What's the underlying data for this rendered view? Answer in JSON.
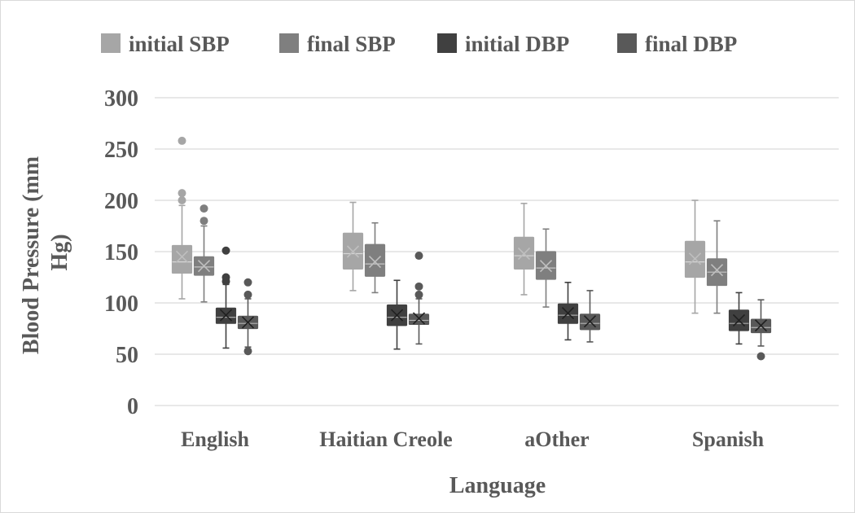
{
  "chart_data": {
    "type": "boxplot",
    "xlabel": "Language",
    "ylabel_lines": [
      "Blood Pressure (mm",
      "Hg)"
    ],
    "ylim": [
      0,
      300
    ],
    "yticks": [
      0,
      50,
      100,
      150,
      200,
      250,
      300
    ],
    "grid": true,
    "legend_position": "top",
    "categories": [
      "English",
      "Haitian Creole",
      "aOther",
      "Spanish"
    ],
    "series": [
      {
        "name": "initial SBP",
        "color": "#a6a6a6",
        "boxes": [
          {
            "min": 104,
            "q1": 129,
            "median": 140,
            "mean": 145,
            "q3": 156,
            "max": 195,
            "outliers": [
              200,
              207,
              258
            ]
          },
          {
            "min": 112,
            "q1": 133,
            "median": 148,
            "mean": 150,
            "q3": 168,
            "max": 198,
            "outliers": []
          },
          {
            "min": 108,
            "q1": 133,
            "median": 146,
            "mean": 148,
            "q3": 164,
            "max": 197,
            "outliers": []
          },
          {
            "min": 90,
            "q1": 125,
            "median": 140,
            "mean": 143,
            "q3": 160,
            "max": 200,
            "outliers": []
          }
        ]
      },
      {
        "name": "final SBP",
        "color": "#7f7f7f",
        "boxes": [
          {
            "min": 101,
            "q1": 127,
            "median": 135,
            "mean": 136,
            "q3": 145,
            "max": 175,
            "outliers": [
              180,
              192
            ]
          },
          {
            "min": 110,
            "q1": 126,
            "median": 138,
            "mean": 140,
            "q3": 157,
            "max": 178,
            "outliers": []
          },
          {
            "min": 96,
            "q1": 123,
            "median": 134,
            "mean": 136,
            "q3": 150,
            "max": 172,
            "outliers": []
          },
          {
            "min": 90,
            "q1": 117,
            "median": 130,
            "mean": 132,
            "q3": 143,
            "max": 180,
            "outliers": []
          }
        ]
      },
      {
        "name": "initial DBP",
        "color": "#404040",
        "boxes": [
          {
            "min": 56,
            "q1": 80,
            "median": 86,
            "mean": 88,
            "q3": 95,
            "max": 118,
            "outliers": [
              121,
              125,
              151
            ]
          },
          {
            "min": 55,
            "q1": 78,
            "median": 86,
            "mean": 88,
            "q3": 98,
            "max": 122,
            "outliers": []
          },
          {
            "min": 64,
            "q1": 80,
            "median": 88,
            "mean": 90,
            "q3": 99,
            "max": 120,
            "outliers": []
          },
          {
            "min": 60,
            "q1": 73,
            "median": 80,
            "mean": 83,
            "q3": 93,
            "max": 110,
            "outliers": []
          }
        ]
      },
      {
        "name": "final DBP",
        "color": "#595959",
        "boxes": [
          {
            "min": 57,
            "q1": 75,
            "median": 80,
            "mean": 81,
            "q3": 87,
            "max": 104,
            "outliers": [
              53,
              108,
              120
            ]
          },
          {
            "min": 60,
            "q1": 79,
            "median": 83,
            "mean": 85,
            "q3": 89,
            "max": 104,
            "outliers": [
              108,
              116,
              146
            ]
          },
          {
            "min": 62,
            "q1": 74,
            "median": 80,
            "mean": 82,
            "q3": 89,
            "max": 112,
            "outliers": []
          },
          {
            "min": 58,
            "q1": 71,
            "median": 76,
            "mean": 78,
            "q3": 84,
            "max": 103,
            "outliers": [
              48
            ]
          }
        ]
      }
    ]
  }
}
